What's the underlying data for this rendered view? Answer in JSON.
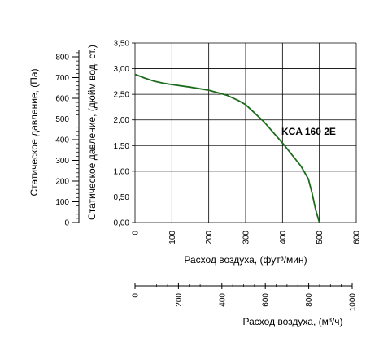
{
  "chart_data": {
    "type": "line",
    "series": [
      {
        "name": "KCA 160 2E",
        "color": "#1d6b1d",
        "x": [
          0,
          25,
          50,
          75,
          100,
          150,
          200,
          250,
          280,
          300,
          350,
          400,
          450,
          470,
          480,
          490,
          500
        ],
        "y": [
          2.89,
          2.82,
          2.76,
          2.72,
          2.69,
          2.64,
          2.58,
          2.48,
          2.38,
          2.3,
          1.96,
          1.55,
          1.1,
          0.85,
          0.58,
          0.25,
          0.0
        ]
      }
    ],
    "curve_label": "KCA 160 2E",
    "x_axis": {
      "label": "Расход воздуха, (фут³/мин)",
      "range": [
        0,
        600
      ],
      "ticks": [
        "0",
        "100",
        "200",
        "300",
        "400",
        "500",
        "600"
      ]
    },
    "x2_axis": {
      "label": "Расход воздуха, (м³/ч)",
      "range": [
        0,
        1000
      ],
      "ticks": [
        "0",
        "200",
        "400",
        "600",
        "800",
        "1000"
      ]
    },
    "y_axis": {
      "label": "Статическое давление, (дюйм вод. ст.)",
      "range": [
        0,
        3.5
      ],
      "ticks": [
        "0,00",
        "0,50",
        "1,00",
        "1,50",
        "2,00",
        "2,50",
        "3,00",
        "3,50"
      ]
    },
    "y2_axis": {
      "label": "Статическое давление, (Па)",
      "range": [
        0,
        871.5
      ],
      "ticks": [
        "0",
        "100",
        "200",
        "300",
        "400",
        "500",
        "600",
        "700",
        "800"
      ]
    },
    "grid": true
  }
}
